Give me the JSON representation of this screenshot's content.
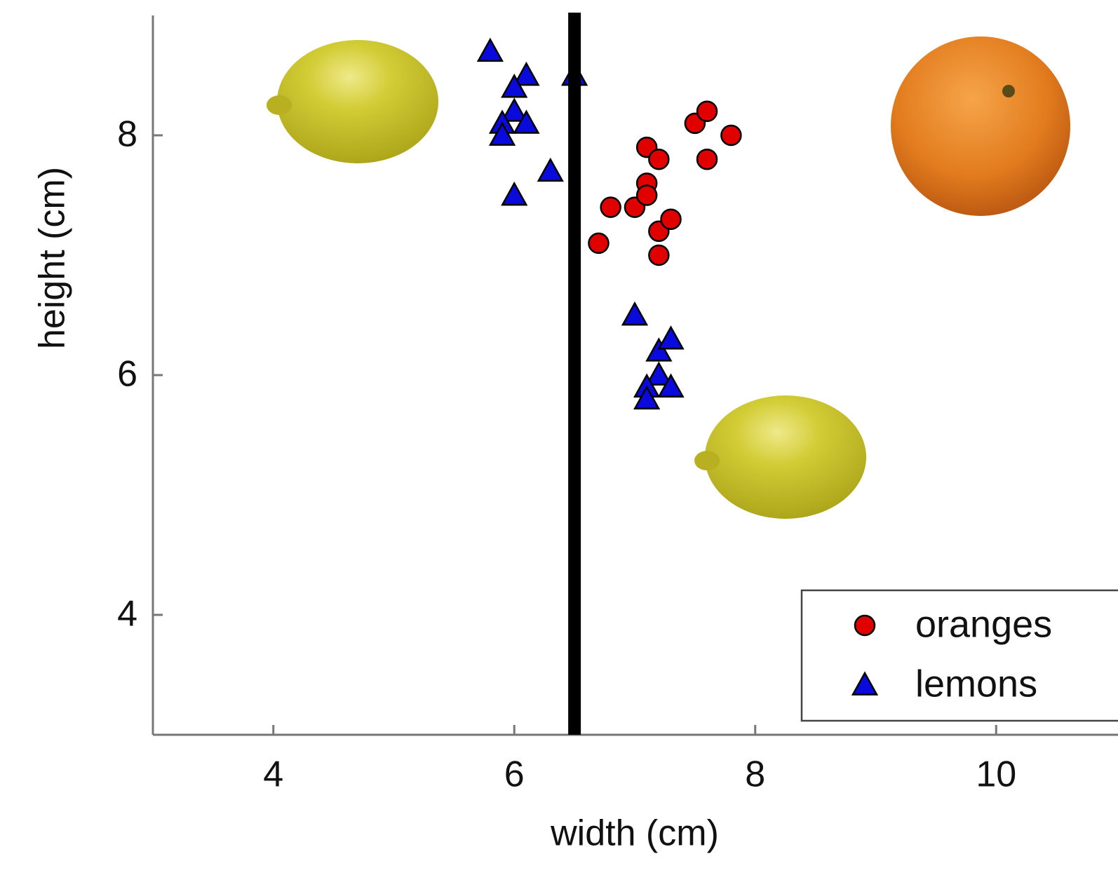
{
  "chart_data": {
    "type": "scatter",
    "xlabel": "width (cm)",
    "ylabel": "height (cm)",
    "xlim": [
      3,
      11
    ],
    "ylim": [
      3,
      9
    ],
    "xticks": [
      4,
      6,
      8,
      10
    ],
    "yticks": [
      4,
      6,
      8
    ],
    "grid": false,
    "legend": "lower right",
    "vline": {
      "x": 6.5,
      "color": "#000000"
    },
    "series": [
      {
        "name": "oranges",
        "color": "#e00000",
        "marker": "circle",
        "x": [
          6.7,
          6.8,
          7.0,
          7.1,
          7.1,
          7.1,
          7.2,
          7.2,
          7.2,
          7.3,
          7.5,
          7.6,
          7.6,
          7.8
        ],
        "y": [
          7.1,
          7.4,
          7.4,
          7.9,
          7.6,
          7.5,
          7.8,
          7.2,
          7.0,
          7.3,
          8.1,
          8.2,
          7.8,
          8.0
        ]
      },
      {
        "name": "lemons",
        "color": "#0a0adc",
        "marker": "triangle",
        "x": [
          5.8,
          6.1,
          6.0,
          6.5,
          6.0,
          5.9,
          6.1,
          5.9,
          6.3,
          6.0,
          7.0,
          7.2,
          7.3,
          7.2,
          7.1,
          7.3,
          7.1
        ],
        "y": [
          8.7,
          8.5,
          8.4,
          8.5,
          8.2,
          8.1,
          8.1,
          8.0,
          7.7,
          7.5,
          6.5,
          6.2,
          6.3,
          6.0,
          5.9,
          5.9,
          5.8
        ]
      }
    ]
  }
}
